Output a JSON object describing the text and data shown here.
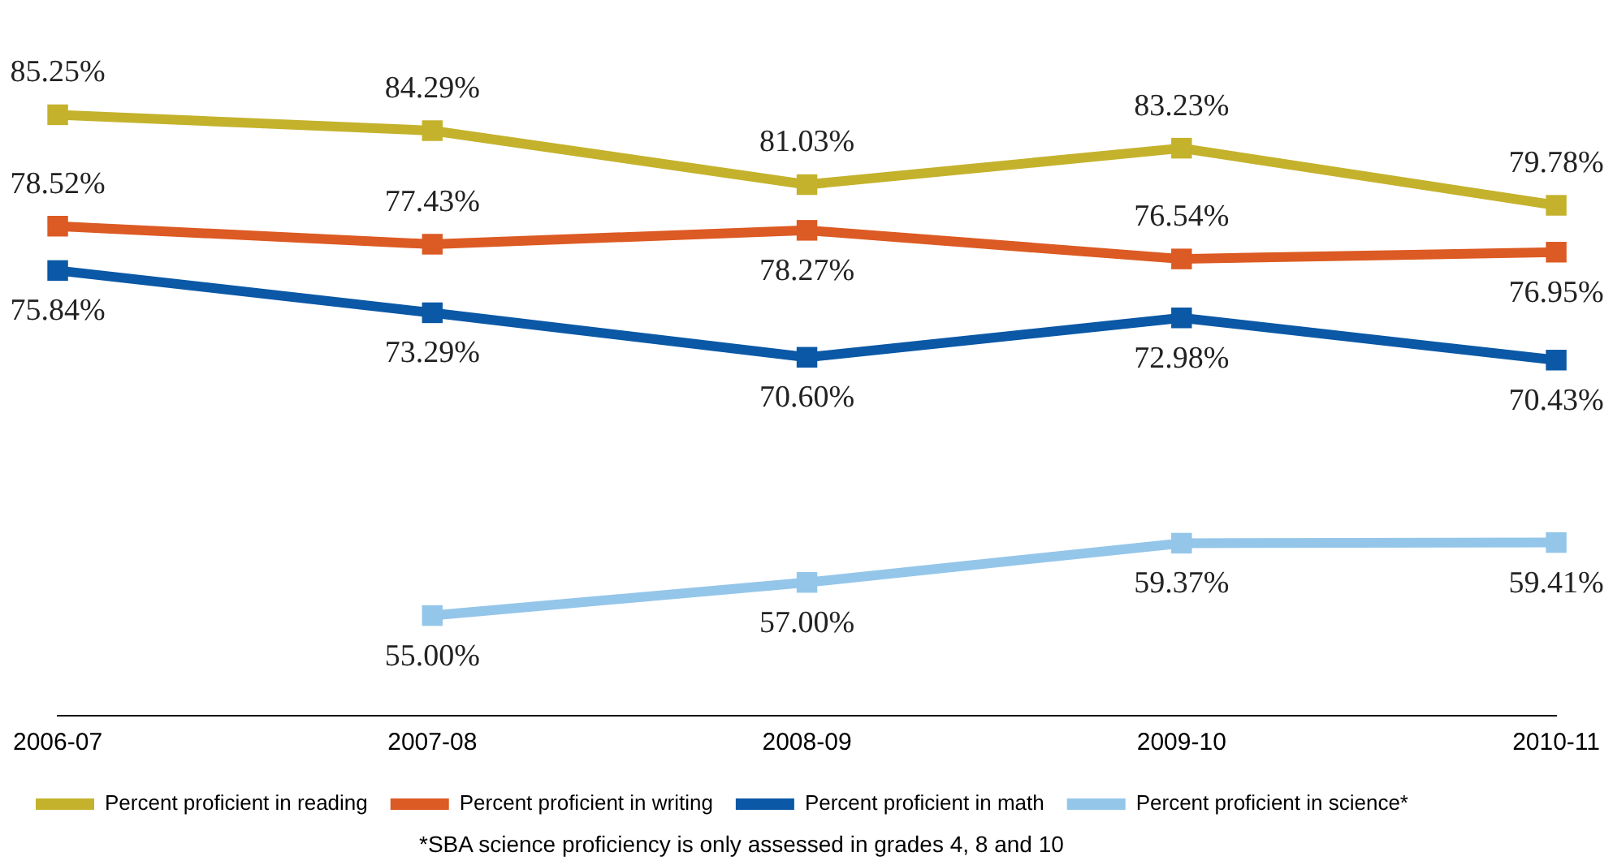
{
  "chart_data": {
    "type": "line",
    "categories": [
      "2006-07",
      "2007-08",
      "2008-09",
      "2009-10",
      "2010-11"
    ],
    "series": [
      {
        "name": "Percent proficient in reading",
        "color": "#c4b22c",
        "values": [
          85.25,
          84.29,
          81.03,
          83.23,
          79.78
        ],
        "value_labels": [
          "85.25%",
          "84.29%",
          "81.03%",
          "83.23%",
          "79.78%"
        ]
      },
      {
        "name": "Percent proficient in writing",
        "color": "#dc5a23",
        "values": [
          78.52,
          77.43,
          78.27,
          76.54,
          76.95
        ],
        "value_labels": [
          "78.52%",
          "77.43%",
          "78.27%",
          "76.54%",
          "76.95%"
        ]
      },
      {
        "name": "Percent proficient in math",
        "color": "#0a58a6",
        "values": [
          75.84,
          73.29,
          70.6,
          72.98,
          70.43
        ],
        "value_labels": [
          "75.84%",
          "73.29%",
          "70.60%",
          "72.98%",
          "70.43%"
        ]
      },
      {
        "name": "Percent proficient in science*",
        "color": "#94c6ea",
        "values": [
          null,
          55.0,
          57.0,
          59.37,
          59.41
        ],
        "value_labels": [
          null,
          "55.00%",
          "57.00%",
          "59.37%",
          "59.41%"
        ]
      }
    ],
    "annotations": [
      "*SBA science proficiency is only assessed in grades 4, 8 and 10"
    ],
    "legend": "bottom",
    "grid": false,
    "marker": "square",
    "line_style": "solid"
  }
}
